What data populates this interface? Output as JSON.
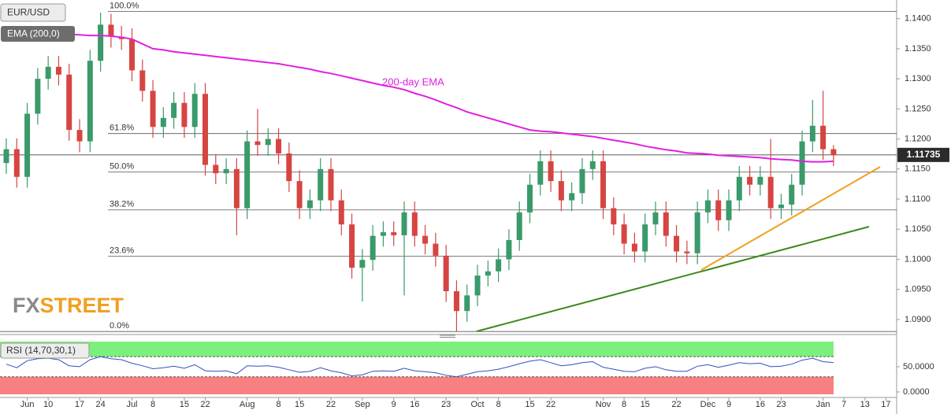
{
  "chart_data": {
    "type": "candlestick",
    "title": "EUR/USD",
    "up_color": "#3a9a6a",
    "down_color": "#d64541",
    "categories": [
      null,
      null,
      "Jun",
      null,
      "10",
      null,
      null,
      "17",
      null,
      "24",
      null,
      null,
      "Jul",
      null,
      "8",
      null,
      null,
      "15",
      null,
      "22",
      null,
      null,
      null,
      "Aug",
      null,
      null,
      "8",
      null,
      "15",
      null,
      null,
      "22",
      null,
      null,
      "Sep",
      null,
      null,
      "9",
      null,
      "16",
      null,
      null,
      "23",
      null,
      null,
      "Oct",
      null,
      "8",
      null,
      null,
      "15",
      null,
      "22",
      null,
      null,
      null,
      null,
      "Nov",
      null,
      "8",
      null,
      "15",
      null,
      null,
      "22",
      null,
      null,
      "Dec",
      null,
      "9",
      null,
      null,
      "16",
      null,
      "23",
      null,
      null,
      null,
      "Jan",
      null,
      "7",
      null,
      "13",
      null,
      "17"
    ],
    "open": [
      1.116,
      1.1183,
      1.1137,
      1.1242,
      1.13,
      1.132,
      1.1307,
      1.1215,
      1.1196,
      1.133,
      1.139,
      1.137,
      1.1366,
      1.1314,
      1.128,
      1.122,
      1.1235,
      1.126,
      1.122,
      1.1275,
      1.1157,
      1.1143,
      1.115,
      1.1085,
      1.1196,
      1.119,
      1.12,
      1.1176,
      1.113,
      1.1085,
      1.1098,
      1.115,
      1.1098,
      1.1058,
      1.0986,
      1.0999,
      1.1039,
      1.1045,
      1.104,
      1.1078,
      1.1039,
      1.1026,
      1.1006,
      1.0947,
      1.0914,
      1.094,
      1.0973,
      1.098,
      1.1,
      1.1032,
      1.1078,
      1.1124,
      1.1163,
      1.113,
      1.1098,
      1.111,
      1.115,
      1.1163,
      1.1085,
      1.1058,
      1.1026,
      1.1013,
      1.1058,
      1.1078,
      1.1039,
      1.1013,
      1.101,
      1.1078,
      1.1098,
      1.1065,
      1.1098,
      1.1137,
      1.1124,
      1.1137,
      1.1085,
      1.1091,
      1.1124,
      1.1196,
      1.1222,
      1.1183,
      null,
      null,
      null,
      null,
      null
    ],
    "high": [
      1.1201,
      1.1201,
      1.126,
      1.1318,
      1.1338,
      1.1338,
      1.1325,
      1.1233,
      1.1348,
      1.141,
      1.1408,
      1.1388,
      1.1384,
      1.1332,
      1.1298,
      1.1253,
      1.1278,
      1.1278,
      1.1293,
      1.1293,
      1.1175,
      1.1168,
      1.1168,
      1.1214,
      1.125,
      1.1218,
      1.1218,
      1.1194,
      1.1148,
      1.1116,
      1.1168,
      1.1168,
      1.1116,
      1.1076,
      1.1017,
      1.1057,
      1.1063,
      1.1063,
      1.1096,
      1.1096,
      1.1057,
      1.1044,
      1.1024,
      1.0965,
      1.0958,
      1.0991,
      1.0998,
      1.1018,
      1.105,
      1.1096,
      1.1142,
      1.1181,
      1.1181,
      1.1148,
      1.1128,
      1.1168,
      1.1181,
      1.1181,
      1.1103,
      1.1076,
      1.1044,
      1.1076,
      1.1096,
      1.1096,
      1.1057,
      1.1031,
      1.1096,
      1.1116,
      1.1116,
      1.1116,
      1.1155,
      1.1155,
      1.1155,
      1.12,
      1.1109,
      1.1142,
      1.1214,
      1.1265,
      1.128,
      1.119,
      null,
      null,
      null,
      null,
      null
    ],
    "low": [
      1.1142,
      1.1119,
      1.1119,
      1.1224,
      1.1282,
      1.1289,
      1.1197,
      1.1178,
      1.1178,
      1.1312,
      1.1352,
      1.1348,
      1.1296,
      1.1262,
      1.1202,
      1.1202,
      1.1217,
      1.1202,
      1.1202,
      1.1139,
      1.1125,
      1.1125,
      1.104,
      1.1067,
      1.1172,
      1.1172,
      1.1158,
      1.1112,
      1.1067,
      1.1067,
      1.108,
      1.108,
      1.104,
      1.0968,
      1.093,
      1.0981,
      1.1021,
      1.1022,
      1.094,
      1.1021,
      1.1008,
      1.0988,
      1.0929,
      1.088,
      1.0896,
      1.0922,
      1.0955,
      1.0962,
      1.0982,
      1.1014,
      1.106,
      1.1106,
      1.1112,
      1.108,
      1.108,
      1.1092,
      1.1132,
      1.1067,
      1.104,
      1.1008,
      1.0995,
      1.0995,
      1.104,
      1.1021,
      1.0995,
      1.0992,
      1.0992,
      1.106,
      1.1047,
      1.1047,
      1.108,
      1.1106,
      1.1106,
      1.1067,
      1.1067,
      1.1073,
      1.1106,
      1.1178,
      1.1165,
      1.1155,
      null,
      null,
      null,
      null,
      null
    ],
    "close": [
      1.1183,
      1.1137,
      1.1242,
      1.13,
      1.132,
      1.1307,
      1.1215,
      1.1196,
      1.133,
      1.139,
      1.137,
      1.1366,
      1.1314,
      1.128,
      1.122,
      1.1235,
      1.126,
      1.122,
      1.1275,
      1.1157,
      1.1143,
      1.115,
      1.1085,
      1.1196,
      1.119,
      1.12,
      1.1176,
      1.113,
      1.1085,
      1.1098,
      1.115,
      1.1098,
      1.1058,
      1.0986,
      1.0999,
      1.1039,
      1.1045,
      1.104,
      1.1078,
      1.1039,
      1.1026,
      1.1006,
      1.0947,
      1.0914,
      1.094,
      1.0973,
      1.098,
      1.1,
      1.1032,
      1.1078,
      1.1124,
      1.1163,
      1.113,
      1.1098,
      1.111,
      1.115,
      1.1163,
      1.1085,
      1.1058,
      1.1026,
      1.1013,
      1.1058,
      1.1078,
      1.1039,
      1.1013,
      1.101,
      1.1078,
      1.1098,
      1.1065,
      1.1098,
      1.1137,
      1.1124,
      1.1137,
      1.1085,
      1.1091,
      1.1124,
      1.1196,
      1.1222,
      1.1183,
      1.1173,
      null,
      null,
      null,
      null,
      null
    ],
    "ema": {
      "name": "EMA (200,0)",
      "annotation": "200-day EMA",
      "color": "#e020e0",
      "values": [
        1.1381,
        1.138,
        1.1379,
        1.1378,
        1.1376,
        1.1375,
        1.1374,
        1.1373,
        1.1372,
        1.1372,
        1.1371,
        1.1369,
        1.1366,
        1.1358,
        1.135,
        1.1348,
        1.1345,
        1.1343,
        1.1341,
        1.1339,
        1.1337,
        1.1335,
        1.1333,
        1.1331,
        1.1329,
        1.1327,
        1.1325,
        1.1322,
        1.1319,
        1.1316,
        1.1312,
        1.1309,
        1.1305,
        1.1301,
        1.1297,
        1.1293,
        1.1289,
        1.1286,
        1.1282,
        1.1276,
        1.1271,
        1.1265,
        1.1258,
        1.1252,
        1.1245,
        1.124,
        1.1235,
        1.123,
        1.1225,
        1.122,
        1.1215,
        1.1213,
        1.1212,
        1.121,
        1.1208,
        1.1206,
        1.1204,
        1.1201,
        1.1198,
        1.1195,
        1.1192,
        1.1188,
        1.1185,
        1.1182,
        1.118,
        1.1177,
        1.1176,
        1.1175,
        1.1173,
        1.1172,
        1.1171,
        1.117,
        1.1169,
        1.1167,
        1.1166,
        1.1165,
        1.1163,
        1.1162,
        1.1162,
        1.1163,
        null,
        null,
        null,
        null,
        null
      ]
    },
    "fib_levels": [
      {
        "label": "100.0%",
        "value": 1.1412
      },
      {
        "label": "61.8%",
        "value": 1.1209
      },
      {
        "label": "50.0%",
        "value": 1.1145
      },
      {
        "label": "38.2%",
        "value": 1.1082
      },
      {
        "label": "23.6%",
        "value": 1.1005
      },
      {
        "label": "0.0%",
        "value": 1.088
      }
    ],
    "last_price": 1.11735,
    "ylim": [
      1.0875,
      1.1431
    ],
    "yticks": [
      {
        "value": 1.09,
        "label": "1.0900"
      },
      {
        "value": 1.095,
        "label": "1.0950"
      },
      {
        "value": 1.1,
        "label": "1.1000"
      },
      {
        "value": 1.105,
        "label": "1.1050"
      },
      {
        "value": 1.11,
        "label": "1.1100"
      },
      {
        "value": 1.115,
        "label": "1.1150"
      },
      {
        "value": 1.12,
        "label": "1.1200"
      },
      {
        "value": 1.125,
        "label": "1.1250"
      },
      {
        "value": 1.13,
        "label": "1.1300"
      },
      {
        "value": 1.135,
        "label": "1.1350"
      },
      {
        "value": 1.14,
        "label": "1.1400"
      }
    ],
    "rsi": {
      "name": "RSI (14,70,30,1)",
      "color": "#3050c0",
      "values": [
        55,
        48,
        62,
        66,
        67,
        64,
        52,
        50,
        64,
        70,
        66,
        64,
        57,
        52,
        46,
        48,
        51,
        47,
        54,
        42,
        41,
        42,
        36,
        52,
        51,
        52,
        49,
        44,
        39,
        41,
        48,
        42,
        38,
        32,
        34,
        41,
        42,
        41,
        47,
        42,
        40,
        38,
        33,
        30,
        35,
        40,
        42,
        45,
        50,
        56,
        61,
        64,
        58,
        52,
        54,
        58,
        60,
        49,
        45,
        41,
        40,
        47,
        50,
        44,
        41,
        41,
        51,
        54,
        49,
        53,
        58,
        56,
        57,
        50,
        51,
        55,
        63,
        67,
        60,
        58,
        null,
        null,
        null,
        null,
        null
      ],
      "ylim": [
        -11,
        103
      ],
      "yticks": [
        {
          "value": 0,
          "label": "0.0000"
        },
        {
          "value": 50,
          "label": "50.0000"
        }
      ],
      "upper": 70,
      "lower": 30,
      "upper_color": "#7cf07c",
      "lower_color": "#f88080"
    },
    "logo": [
      "FX",
      "STREET"
    ]
  }
}
